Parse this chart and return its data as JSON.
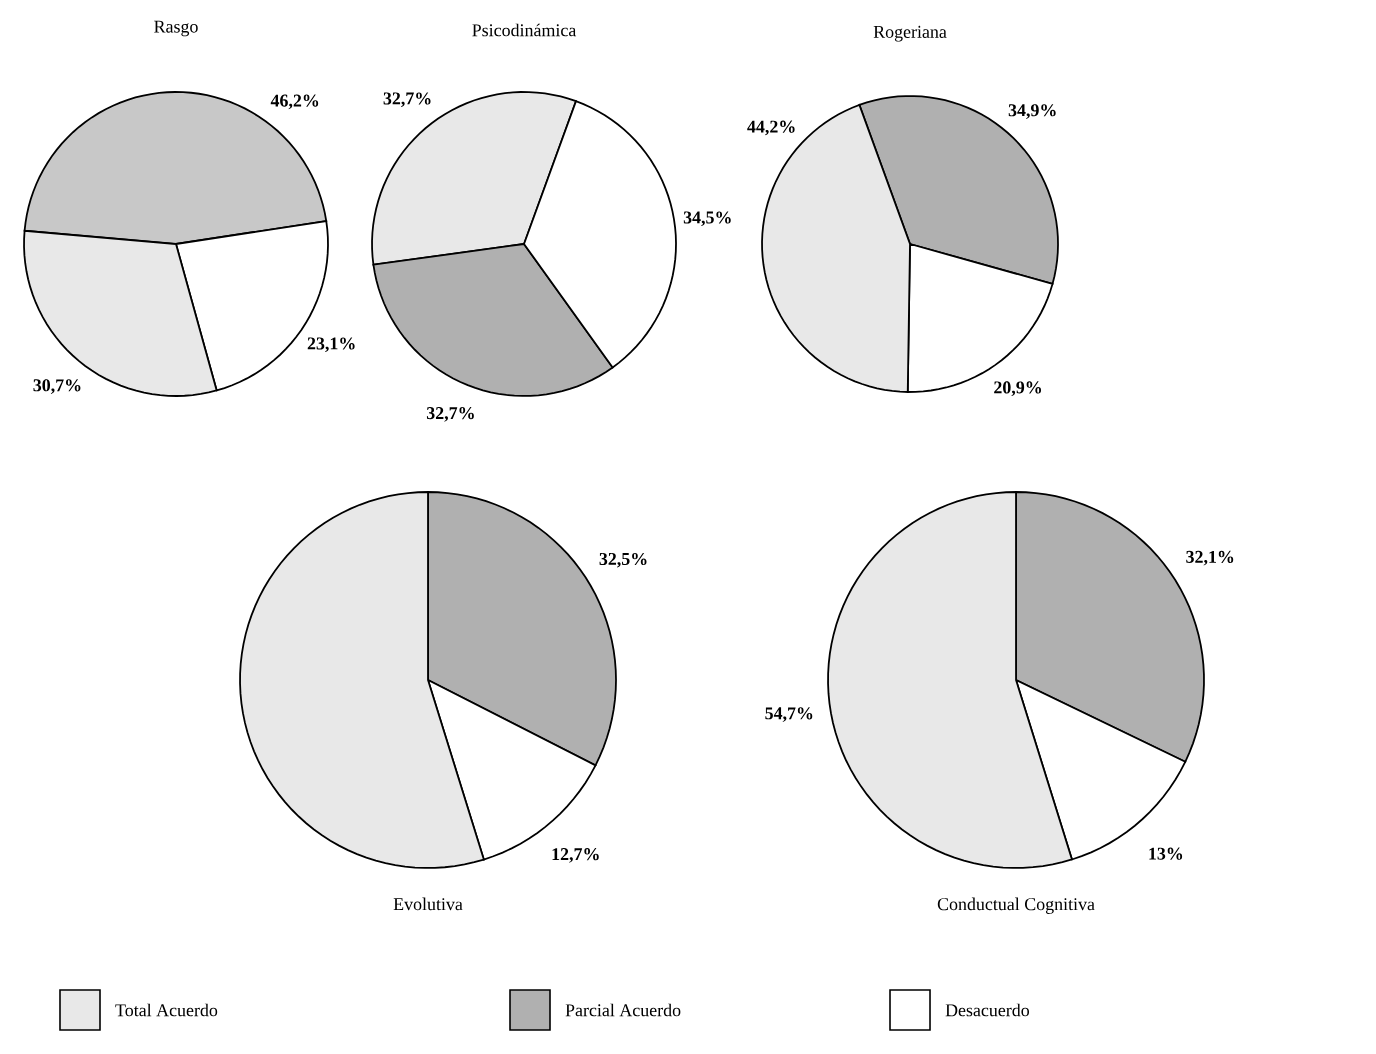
{
  "chart_data": [
    {
      "type": "pie",
      "title": "Rasgo",
      "categories": [
        null,
        null,
        null
      ],
      "values": [
        46.2,
        23.1,
        30.7
      ],
      "colors": [
        "#c8c8c8",
        "#ffffff",
        "#e8e8e8"
      ],
      "value_labels": [
        "46,2%",
        "23,1%",
        "30,7%"
      ]
    },
    {
      "type": "pie",
      "title": "Psicodinámica",
      "categories": [
        "Total Acuerdo",
        "Parcial Acuerdo",
        "Desacuerdo"
      ],
      "values": [
        32.7,
        32.7,
        34.5
      ],
      "colors": [
        "#e8e8e8",
        "#b0b0b0",
        "#ffffff"
      ],
      "value_labels": [
        "32,7%",
        "32,7%",
        "34,5%"
      ],
      "legend": "bottom"
    },
    {
      "type": "pie",
      "title": "Rogeriana",
      "categories": [
        null,
        null,
        null
      ],
      "values": [
        34.9,
        20.9,
        44.2
      ],
      "colors": [
        "#b0b0b0",
        "#ffffff",
        "#e8e8e8"
      ],
      "value_labels": [
        "34,9%",
        "20,9%",
        "44,2%"
      ]
    },
    {
      "type": "pie",
      "title": "Evolutiva",
      "categories": [
        null,
        null,
        null
      ],
      "values": [
        32.5,
        12.7,
        54.8
      ],
      "colors": [
        "#b0b0b0",
        "#ffffff",
        "#e8e8e8"
      ],
      "value_labels": [
        "32,5%",
        "12,7%",
        null
      ]
    },
    {
      "type": "pie",
      "title": "Conductual Cognitiva",
      "categories": [
        null,
        null,
        null
      ],
      "values": [
        32.1,
        13,
        54.7
      ],
      "colors": [
        "#b0b0b0",
        "#ffffff",
        "#e8e8e8"
      ],
      "value_labels": [
        "32,1%",
        "13%",
        "54,7%"
      ]
    }
  ]
}
